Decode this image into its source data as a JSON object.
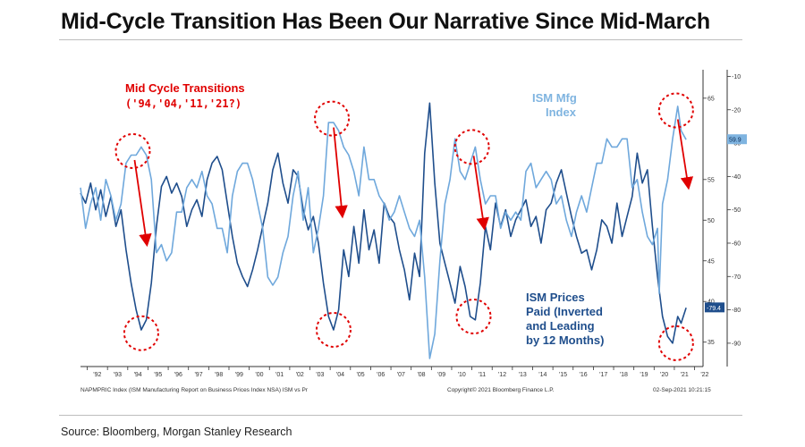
{
  "title": "Mid-Cycle Transition Has Been Our Narrative Since Mid-March",
  "source": "Source: Bloomberg, Morgan Stanley Research",
  "footer": {
    "left": "NAPMPRIC Index (ISM Manufacturing Report on Business Prices Index NSA) ISM vs Pr",
    "center": "Copyright© 2021 Bloomberg Finance L.P.",
    "right": "02-Sep-2021 10:21:15"
  },
  "chart_data": {
    "type": "line",
    "x_tick_labels": [
      "'92",
      "'93",
      "'94",
      "'95",
      "'96",
      "'97",
      "'98",
      "'99",
      "'00",
      "'01",
      "'02",
      "'03",
      "'04",
      "'05",
      "'06",
      "'07",
      "'08",
      "'09",
      "'10",
      "'11",
      "'12",
      "'13",
      "'14",
      "'15",
      "'16",
      "'17",
      "'18",
      "'19",
      "'20",
      "'21",
      "'22"
    ],
    "xlim": [
      "1991-09",
      "2022-06"
    ],
    "y_left_inner": {
      "ticks": [
        65,
        55,
        50,
        45,
        40,
        35
      ],
      "range": [
        32,
        68.5
      ]
    },
    "y_right_outer": {
      "ticks": [
        -10,
        -20,
        -30,
        -40,
        -50,
        -60,
        -70,
        -80,
        -90
      ],
      "range": [
        -97,
        -8
      ]
    },
    "last_value_badges": [
      {
        "series": "ISM Mfg Index",
        "text": "59.9",
        "color": "#7fb4e0"
      },
      {
        "series": "ISM Prices Paid (Inverted and Leading by 12 Months)",
        "text": "-79.4",
        "color": "#1f4e8c"
      }
    ],
    "series": [
      {
        "name": "ISM Mfg Index",
        "color": "#6fa8dc",
        "axis": "inner",
        "points": [
          [
            "1991-09",
            54
          ],
          [
            "1991-12",
            49
          ],
          [
            "1992-03",
            52
          ],
          [
            "1992-06",
            54
          ],
          [
            "1992-09",
            50
          ],
          [
            "1992-12",
            55
          ],
          [
            "1993-03",
            53
          ],
          [
            "1993-06",
            50
          ],
          [
            "1993-09",
            52
          ],
          [
            "1993-12",
            57
          ],
          [
            "1994-03",
            58
          ],
          [
            "1994-06",
            58
          ],
          [
            "1994-09",
            59
          ],
          [
            "1994-12",
            58
          ],
          [
            "1995-03",
            55
          ],
          [
            "1995-06",
            46
          ],
          [
            "1995-09",
            47
          ],
          [
            "1995-12",
            45
          ],
          [
            "1996-03",
            46
          ],
          [
            "1996-06",
            51
          ],
          [
            "1996-09",
            51
          ],
          [
            "1996-12",
            54
          ],
          [
            "1997-03",
            55
          ],
          [
            "1997-06",
            54
          ],
          [
            "1997-09",
            56
          ],
          [
            "1997-12",
            53
          ],
          [
            "1998-03",
            52
          ],
          [
            "1998-06",
            49
          ],
          [
            "1998-09",
            49
          ],
          [
            "1998-12",
            46
          ],
          [
            "1999-03",
            53
          ],
          [
            "1999-06",
            56
          ],
          [
            "1999-09",
            57
          ],
          [
            "1999-12",
            57
          ],
          [
            "2000-03",
            55
          ],
          [
            "2000-06",
            52
          ],
          [
            "2000-09",
            49
          ],
          [
            "2000-12",
            43
          ],
          [
            "2001-03",
            42
          ],
          [
            "2001-06",
            43
          ],
          [
            "2001-09",
            46
          ],
          [
            "2001-12",
            48
          ],
          [
            "2002-03",
            53
          ],
          [
            "2002-06",
            56
          ],
          [
            "2002-09",
            50
          ],
          [
            "2002-12",
            54
          ],
          [
            "2003-03",
            46
          ],
          [
            "2003-06",
            49
          ],
          [
            "2003-09",
            53
          ],
          [
            "2003-12",
            62
          ],
          [
            "2004-03",
            62
          ],
          [
            "2004-06",
            61
          ],
          [
            "2004-09",
            59
          ],
          [
            "2004-12",
            58
          ],
          [
            "2005-03",
            56
          ],
          [
            "2005-06",
            53
          ],
          [
            "2005-09",
            59
          ],
          [
            "2005-12",
            55
          ],
          [
            "2006-03",
            55
          ],
          [
            "2006-06",
            53
          ],
          [
            "2006-09",
            52
          ],
          [
            "2006-12",
            50
          ],
          [
            "2007-03",
            51
          ],
          [
            "2007-06",
            53
          ],
          [
            "2007-09",
            51
          ],
          [
            "2007-12",
            49
          ],
          [
            "2008-03",
            48
          ],
          [
            "2008-06",
            50
          ],
          [
            "2008-09",
            43
          ],
          [
            "2008-12",
            33
          ],
          [
            "2009-03",
            36
          ],
          [
            "2009-06",
            45
          ],
          [
            "2009-09",
            52
          ],
          [
            "2009-12",
            55
          ],
          [
            "2010-03",
            60
          ],
          [
            "2010-06",
            56
          ],
          [
            "2010-09",
            55
          ],
          [
            "2010-12",
            57
          ],
          [
            "2011-03",
            59
          ],
          [
            "2011-06",
            55
          ],
          [
            "2011-09",
            52
          ],
          [
            "2011-12",
            53
          ],
          [
            "2012-03",
            53
          ],
          [
            "2012-06",
            49
          ],
          [
            "2012-09",
            51
          ],
          [
            "2012-12",
            50
          ],
          [
            "2013-03",
            51
          ],
          [
            "2013-06",
            50
          ],
          [
            "2013-09",
            56
          ],
          [
            "2013-12",
            57
          ],
          [
            "2014-03",
            54
          ],
          [
            "2014-06",
            55
          ],
          [
            "2014-09",
            56
          ],
          [
            "2014-12",
            55
          ],
          [
            "2015-03",
            52
          ],
          [
            "2015-06",
            53
          ],
          [
            "2015-09",
            50
          ],
          [
            "2015-12",
            48
          ],
          [
            "2016-03",
            51
          ],
          [
            "2016-06",
            53
          ],
          [
            "2016-09",
            51
          ],
          [
            "2016-12",
            54
          ],
          [
            "2017-03",
            57
          ],
          [
            "2017-06",
            57
          ],
          [
            "2017-09",
            60
          ],
          [
            "2017-12",
            59
          ],
          [
            "2018-03",
            59
          ],
          [
            "2018-06",
            60
          ],
          [
            "2018-09",
            60
          ],
          [
            "2018-12",
            54
          ],
          [
            "2019-03",
            55
          ],
          [
            "2019-06",
            51
          ],
          [
            "2019-09",
            48
          ],
          [
            "2019-12",
            47
          ],
          [
            "2020-03",
            49
          ],
          [
            "2020-04",
            41
          ],
          [
            "2020-06",
            52
          ],
          [
            "2020-09",
            55
          ],
          [
            "2020-12",
            60
          ],
          [
            "2021-03",
            64
          ],
          [
            "2021-05",
            61
          ],
          [
            "2021-08",
            59.9
          ]
        ]
      },
      {
        "name": "ISM Prices Paid (Inverted and Leading by 12 Months)",
        "color": "#1f4e8c",
        "axis": "outer",
        "points": [
          [
            "1991-09",
            -45
          ],
          [
            "1991-12",
            -48
          ],
          [
            "1992-03",
            -42
          ],
          [
            "1992-06",
            -50
          ],
          [
            "1992-09",
            -44
          ],
          [
            "1992-12",
            -52
          ],
          [
            "1993-03",
            -46
          ],
          [
            "1993-06",
            -55
          ],
          [
            "1993-09",
            -50
          ],
          [
            "1993-12",
            -62
          ],
          [
            "1994-03",
            -72
          ],
          [
            "1994-06",
            -80
          ],
          [
            "1994-09",
            -86
          ],
          [
            "1994-12",
            -83
          ],
          [
            "1995-03",
            -72
          ],
          [
            "1995-06",
            -55
          ],
          [
            "1995-09",
            -43
          ],
          [
            "1995-12",
            -40
          ],
          [
            "1996-03",
            -45
          ],
          [
            "1996-06",
            -42
          ],
          [
            "1996-09",
            -46
          ],
          [
            "1996-12",
            -55
          ],
          [
            "1997-03",
            -50
          ],
          [
            "1997-06",
            -47
          ],
          [
            "1997-09",
            -52
          ],
          [
            "1997-12",
            -41
          ],
          [
            "1998-03",
            -36
          ],
          [
            "1998-06",
            -34
          ],
          [
            "1998-09",
            -38
          ],
          [
            "1998-12",
            -48
          ],
          [
            "1999-03",
            -58
          ],
          [
            "1999-06",
            -66
          ],
          [
            "1999-09",
            -70
          ],
          [
            "1999-12",
            -73
          ],
          [
            "2000-03",
            -68
          ],
          [
            "2000-06",
            -62
          ],
          [
            "2000-09",
            -55
          ],
          [
            "2000-12",
            -48
          ],
          [
            "2001-03",
            -38
          ],
          [
            "2001-06",
            -33
          ],
          [
            "2001-09",
            -42
          ],
          [
            "2001-12",
            -48
          ],
          [
            "2002-03",
            -38
          ],
          [
            "2002-06",
            -40
          ],
          [
            "2002-09",
            -50
          ],
          [
            "2002-12",
            -56
          ],
          [
            "2003-03",
            -52
          ],
          [
            "2003-06",
            -60
          ],
          [
            "2003-09",
            -72
          ],
          [
            "2003-12",
            -82
          ],
          [
            "2004-03",
            -86
          ],
          [
            "2004-06",
            -80
          ],
          [
            "2004-09",
            -62
          ],
          [
            "2004-12",
            -70
          ],
          [
            "2005-03",
            -55
          ],
          [
            "2005-06",
            -66
          ],
          [
            "2005-09",
            -50
          ],
          [
            "2005-12",
            -62
          ],
          [
            "2006-03",
            -56
          ],
          [
            "2006-06",
            -66
          ],
          [
            "2006-09",
            -48
          ],
          [
            "2006-12",
            -52
          ],
          [
            "2007-03",
            -54
          ],
          [
            "2007-06",
            -62
          ],
          [
            "2007-09",
            -68
          ],
          [
            "2007-12",
            -77
          ],
          [
            "2008-03",
            -63
          ],
          [
            "2008-06",
            -70
          ],
          [
            "2008-09",
            -33
          ],
          [
            "2008-12",
            -18
          ],
          [
            "2009-03",
            -42
          ],
          [
            "2009-06",
            -60
          ],
          [
            "2009-09",
            -66
          ],
          [
            "2009-12",
            -72
          ],
          [
            "2010-03",
            -78
          ],
          [
            "2010-06",
            -67
          ],
          [
            "2010-09",
            -73
          ],
          [
            "2010-12",
            -82
          ],
          [
            "2011-03",
            -83
          ],
          [
            "2011-06",
            -72
          ],
          [
            "2011-09",
            -55
          ],
          [
            "2011-12",
            -62
          ],
          [
            "2012-03",
            -48
          ],
          [
            "2012-06",
            -55
          ],
          [
            "2012-09",
            -50
          ],
          [
            "2012-12",
            -58
          ],
          [
            "2013-03",
            -53
          ],
          [
            "2013-06",
            -50
          ],
          [
            "2013-09",
            -47
          ],
          [
            "2013-12",
            -55
          ],
          [
            "2014-03",
            -52
          ],
          [
            "2014-06",
            -60
          ],
          [
            "2014-09",
            -50
          ],
          [
            "2014-12",
            -48
          ],
          [
            "2015-03",
            -42
          ],
          [
            "2015-06",
            -38
          ],
          [
            "2015-09",
            -45
          ],
          [
            "2015-12",
            -52
          ],
          [
            "2016-03",
            -58
          ],
          [
            "2016-06",
            -63
          ],
          [
            "2016-09",
            -62
          ],
          [
            "2016-12",
            -68
          ],
          [
            "2017-03",
            -62
          ],
          [
            "2017-06",
            -53
          ],
          [
            "2017-09",
            -55
          ],
          [
            "2017-12",
            -60
          ],
          [
            "2018-03",
            -48
          ],
          [
            "2018-06",
            -58
          ],
          [
            "2018-09",
            -52
          ],
          [
            "2018-12",
            -46
          ],
          [
            "2019-03",
            -33
          ],
          [
            "2019-06",
            -42
          ],
          [
            "2019-09",
            -38
          ],
          [
            "2019-12",
            -55
          ],
          [
            "2020-03",
            -70
          ],
          [
            "2020-06",
            -82
          ],
          [
            "2020-09",
            -88
          ],
          [
            "2020-12",
            -90
          ],
          [
            "2021-03",
            -82
          ],
          [
            "2021-05",
            -84
          ],
          [
            "2021-08",
            -79.4
          ]
        ]
      }
    ],
    "annotations": [
      {
        "text": [
          "Mid Cycle Transitions",
          "('94,'04,'11,'21?)"
        ],
        "color": "#e00000"
      },
      {
        "text": [
          "ISM Mfg",
          "Index"
        ],
        "color": "#7fb4e0"
      },
      {
        "text": [
          "ISM Prices",
          "Paid (Inverted",
          "and Leading",
          "by 12 Months)"
        ],
        "color": "#1f4e8c"
      }
    ],
    "highlight_circles": [
      {
        "date": "1994-04",
        "value_inner": 58.5,
        "arrow_to": [
          "1994-12",
          47.5
        ]
      },
      {
        "date": "2004-02",
        "value_inner": 62.5,
        "arrow_to": [
          "2004-08",
          51
        ]
      },
      {
        "date": "2011-01",
        "value_inner": 59,
        "arrow_to": [
          "2011-08",
          49.5
        ]
      },
      {
        "date": "2021-02",
        "value_inner": 63.5,
        "arrow_to": [
          "2021-09",
          54.5
        ]
      },
      {
        "date": "1994-09",
        "value_outer": -87
      },
      {
        "date": "2004-03",
        "value_outer": -86
      },
      {
        "date": "2011-02",
        "value_outer": -82
      },
      {
        "date": "2021-02",
        "value_outer": -90
      }
    ]
  }
}
